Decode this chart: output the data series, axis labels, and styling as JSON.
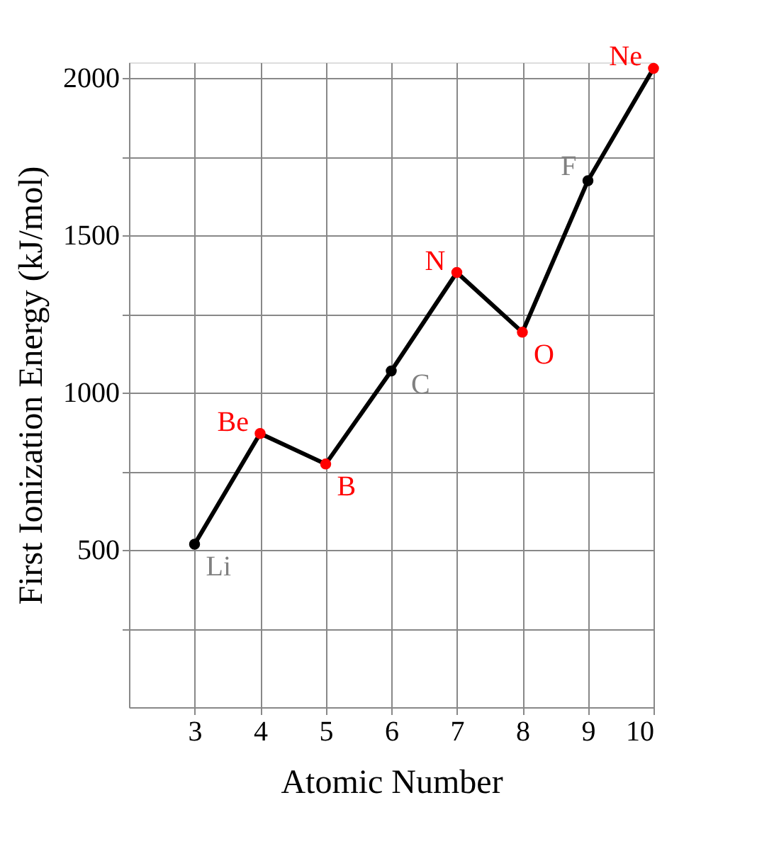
{
  "chart_data": {
    "type": "line",
    "xlabel": "Atomic Number",
    "ylabel": "First Ionization Energy (kJ/mol)",
    "x": [
      3,
      4,
      5,
      6,
      7,
      8,
      9,
      10
    ],
    "series": [
      {
        "color": "#000000",
        "values": [
          518,
          870,
          773,
          1069,
          1382,
          1192,
          1674,
          2031
        ],
        "colors": [
          "#000000",
          "#ff0000",
          "#ff0000",
          "#000000",
          "#ff0000",
          "#ff0000",
          "#000000",
          "#ff0000"
        ]
      }
    ],
    "xlim": [
      2,
      10
    ],
    "xticks": [
      3,
      4,
      5,
      6,
      7,
      8,
      9,
      10
    ],
    "ylim": [
      0,
      2050
    ],
    "yticks": [
      {
        "value": 250,
        "label": null
      },
      500,
      {
        "value": 750,
        "label": null
      },
      1000,
      {
        "value": 1250,
        "label": null
      },
      1500,
      {
        "value": 1750,
        "label": null
      },
      2000
    ],
    "grid": true,
    "marker": "circle",
    "line_style": "solid",
    "annotations": [
      {
        "text": "Li",
        "x": 3,
        "y": 518
      },
      {
        "text": "Be",
        "x": 4,
        "y": 870
      },
      {
        "text": "B",
        "x": 5,
        "y": 773
      },
      {
        "text": "C",
        "x": 6,
        "y": 1069
      },
      {
        "text": "N",
        "x": 7,
        "y": 1382
      },
      {
        "text": "O",
        "x": 8,
        "y": 1192
      },
      {
        "text": "F",
        "x": 9,
        "y": 1674
      },
      {
        "text": "Ne",
        "x": 10,
        "y": 2031
      }
    ]
  }
}
